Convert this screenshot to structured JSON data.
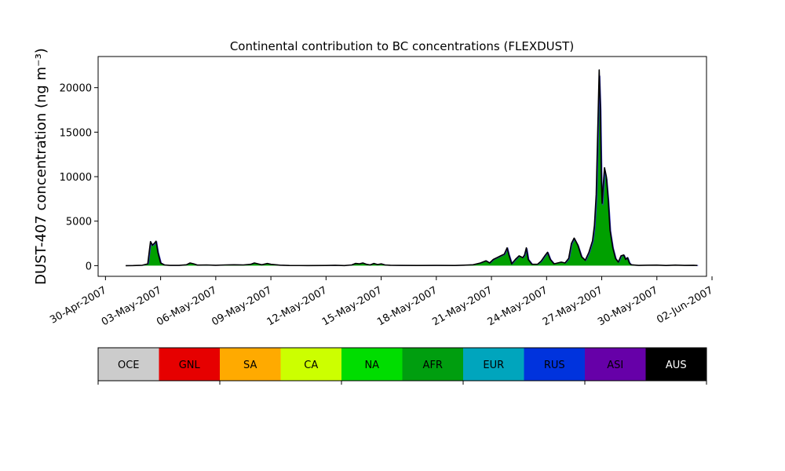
{
  "chart_data": {
    "type": "area",
    "title": "Continental contribution to BC concentrations (FLEXDUST)",
    "ylabel": "DUST-407 concentration (ng m⁻³)",
    "xlabel": "",
    "x_tick_labels": [
      "30-Apr-2007",
      "03-May-2007",
      "06-May-2007",
      "09-May-2007",
      "12-May-2007",
      "15-May-2007",
      "18-May-2007",
      "21-May-2007",
      "24-May-2007",
      "27-May-2007",
      "30-May-2007",
      "02-Jun-2007"
    ],
    "y_ticks": [
      0,
      5000,
      10000,
      15000,
      20000
    ],
    "xlim_days": [
      -0.4,
      32.7
    ],
    "ylim": [
      -1200,
      23500
    ],
    "x_unit": "days since 30-Apr-2007",
    "grid": false,
    "series_note": "stacked area, dominated by AFR contribution; black line = total",
    "time_series": [
      [
        1.1,
        0
      ],
      [
        1.5,
        10
      ],
      [
        2.0,
        40
      ],
      [
        2.3,
        200
      ],
      [
        2.45,
        2700
      ],
      [
        2.55,
        2300
      ],
      [
        2.65,
        2500
      ],
      [
        2.75,
        2750
      ],
      [
        2.85,
        1500
      ],
      [
        3.0,
        300
      ],
      [
        3.2,
        80
      ],
      [
        3.5,
        30
      ],
      [
        4.0,
        30
      ],
      [
        4.4,
        100
      ],
      [
        4.6,
        300
      ],
      [
        4.8,
        200
      ],
      [
        5.0,
        60
      ],
      [
        5.5,
        80
      ],
      [
        6.0,
        40
      ],
      [
        6.5,
        80
      ],
      [
        7.0,
        100
      ],
      [
        7.5,
        80
      ],
      [
        7.9,
        150
      ],
      [
        8.1,
        300
      ],
      [
        8.3,
        200
      ],
      [
        8.5,
        100
      ],
      [
        8.8,
        250
      ],
      [
        9.0,
        150
      ],
      [
        9.5,
        50
      ],
      [
        10.0,
        20
      ],
      [
        11.0,
        10
      ],
      [
        12.0,
        20
      ],
      [
        12.5,
        40
      ],
      [
        13.0,
        10
      ],
      [
        13.4,
        80
      ],
      [
        13.6,
        250
      ],
      [
        13.8,
        200
      ],
      [
        14.0,
        300
      ],
      [
        14.2,
        150
      ],
      [
        14.4,
        80
      ],
      [
        14.6,
        250
      ],
      [
        14.8,
        120
      ],
      [
        15.0,
        200
      ],
      [
        15.2,
        80
      ],
      [
        15.5,
        40
      ],
      [
        16.0,
        30
      ],
      [
        17.0,
        20
      ],
      [
        18.0,
        30
      ],
      [
        19.0,
        20
      ],
      [
        19.5,
        50
      ],
      [
        20.0,
        100
      ],
      [
        20.4,
        300
      ],
      [
        20.7,
        550
      ],
      [
        20.9,
        300
      ],
      [
        21.1,
        700
      ],
      [
        21.3,
        900
      ],
      [
        21.5,
        1100
      ],
      [
        21.7,
        1300
      ],
      [
        21.85,
        2000
      ],
      [
        21.95,
        1200
      ],
      [
        22.1,
        200
      ],
      [
        22.3,
        700
      ],
      [
        22.5,
        1100
      ],
      [
        22.7,
        900
      ],
      [
        22.8,
        1200
      ],
      [
        22.9,
        2000
      ],
      [
        23.0,
        700
      ],
      [
        23.2,
        150
      ],
      [
        23.5,
        150
      ],
      [
        23.7,
        500
      ],
      [
        23.9,
        1100
      ],
      [
        24.05,
        1500
      ],
      [
        24.2,
        700
      ],
      [
        24.4,
        200
      ],
      [
        24.6,
        300
      ],
      [
        24.8,
        400
      ],
      [
        25.0,
        300
      ],
      [
        25.2,
        800
      ],
      [
        25.35,
        2500
      ],
      [
        25.5,
        3100
      ],
      [
        25.7,
        2300
      ],
      [
        25.9,
        1000
      ],
      [
        26.1,
        600
      ],
      [
        26.3,
        1500
      ],
      [
        26.5,
        2800
      ],
      [
        26.6,
        4500
      ],
      [
        26.7,
        8000
      ],
      [
        26.78,
        15000
      ],
      [
        26.86,
        22000
      ],
      [
        26.92,
        18000
      ],
      [
        26.98,
        9500
      ],
      [
        27.02,
        7000
      ],
      [
        27.08,
        9000
      ],
      [
        27.15,
        11000
      ],
      [
        27.25,
        10000
      ],
      [
        27.35,
        7500
      ],
      [
        27.45,
        4000
      ],
      [
        27.6,
        2000
      ],
      [
        27.75,
        800
      ],
      [
        27.9,
        400
      ],
      [
        28.05,
        1100
      ],
      [
        28.2,
        1200
      ],
      [
        28.3,
        700
      ],
      [
        28.4,
        900
      ],
      [
        28.5,
        300
      ],
      [
        28.6,
        100
      ],
      [
        29.0,
        30
      ],
      [
        29.5,
        50
      ],
      [
        30.0,
        60
      ],
      [
        30.5,
        20
      ],
      [
        31.0,
        60
      ],
      [
        31.5,
        30
      ],
      [
        32.0,
        40
      ],
      [
        32.2,
        20
      ]
    ],
    "legend_title": "",
    "legend": [
      {
        "name": "OCE",
        "color": "#cccccc",
        "text_color": "#000000"
      },
      {
        "name": "GNL",
        "color": "#e60000",
        "text_color": "#000000"
      },
      {
        "name": "SA",
        "color": "#ffaa00",
        "text_color": "#000000"
      },
      {
        "name": "CA",
        "color": "#ccff00",
        "text_color": "#000000"
      },
      {
        "name": "NA",
        "color": "#00dd00",
        "text_color": "#000000"
      },
      {
        "name": "AFR",
        "color": "#009e0f",
        "text_color": "#000000"
      },
      {
        "name": "EUR",
        "color": "#00a5bd",
        "text_color": "#000000"
      },
      {
        "name": "RUS",
        "color": "#0033dd",
        "text_color": "#000000"
      },
      {
        "name": "ASI",
        "color": "#6600a8",
        "text_color": "#000000"
      },
      {
        "name": "AUS",
        "color": "#000000",
        "text_color": "#ffffff"
      }
    ],
    "fill_color": "#00a000",
    "line_color": "#000000",
    "secondary_line_color": "#3333cc"
  }
}
